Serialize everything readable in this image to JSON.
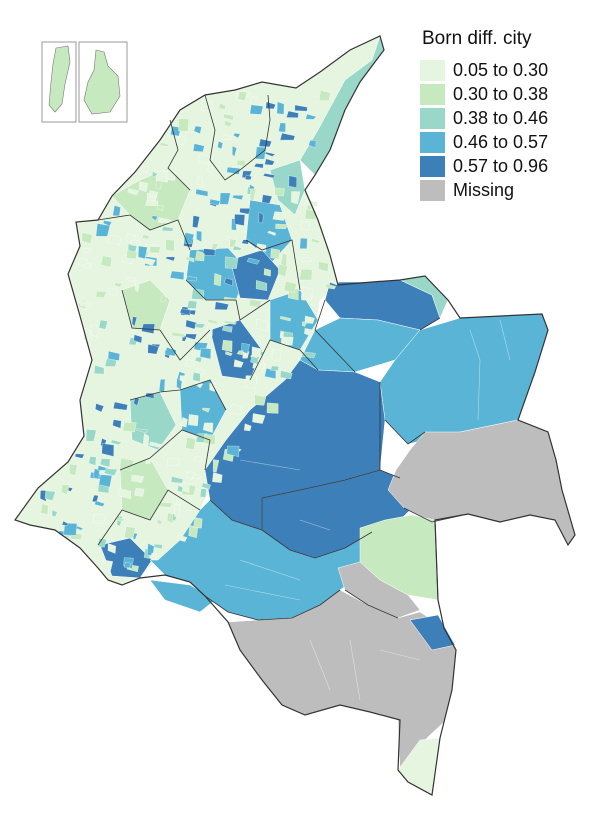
{
  "legend": {
    "title": "Born diff. city",
    "items": [
      {
        "label": "0.05 to 0.30",
        "color": "#e5f5e0"
      },
      {
        "label": "0.30 to 0.38",
        "color": "#c7e9c0"
      },
      {
        "label": "0.38 to 0.46",
        "color": "#99d8c9"
      },
      {
        "label": "0.46 to 0.57",
        "color": "#5ab4d6"
      },
      {
        "label": "0.57 to 0.96",
        "color": "#3d7fb8"
      },
      {
        "label": "Missing",
        "color": "#bdbdbd"
      }
    ]
  },
  "map": {
    "background": "#ffffff",
    "border_color": "#333333",
    "internal_line_color": "#ffffff",
    "inset_fill": "#c7e9c0"
  }
}
